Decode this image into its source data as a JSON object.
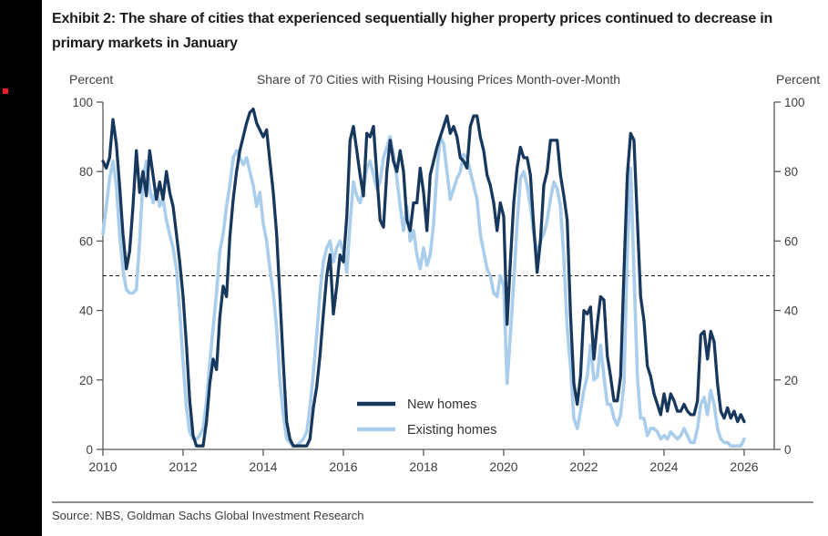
{
  "page": {
    "exhibit_title": {
      "line1": "Exhibit 2: The share of cities that experienced sequentially higher property prices continued",
      "line2": "to decrease in primary markets in January"
    },
    "source": "Source: NBS, Goldman Sachs Global Investment Research"
  },
  "chart": {
    "unit_left": "Percent",
    "unit_right": "Percent",
    "title": "Share of 70 Cities with Rising Housing Prices Month-over-Month"
  },
  "colors": {
    "new_homes": "#17375C",
    "existing_homes": "#A9CDEA",
    "axis": "#58595b",
    "reference_line": "#1a1a1a",
    "sidebar": "#000000",
    "accent_red": "#ee1c25"
  },
  "chart_data": {
    "type": "line",
    "title": "Share of 70 Cities with Rising Housing Prices Month-over-Month",
    "ylabel": "Percent",
    "ylabel_right": "Percent",
    "ylim": [
      0,
      100
    ],
    "y_ticks": [
      0,
      20,
      40,
      60,
      80,
      100
    ],
    "x_ticks": [
      2010,
      2012,
      2014,
      2016,
      2018,
      2020,
      2022,
      2024,
      2026
    ],
    "x_start_year": 2010,
    "x_frequency": "monthly",
    "x_end": "2026-01",
    "reference_line_y": 50,
    "grid": false,
    "legend_position": "inside-bottom-center",
    "series": [
      {
        "name": "New homes",
        "color": "#17375C",
        "values": [
          83,
          81,
          84,
          95,
          88,
          76,
          62,
          52,
          57,
          70,
          86,
          74,
          80,
          73,
          86,
          79,
          72,
          77,
          72,
          80,
          74,
          70,
          62,
          54,
          44,
          30,
          14,
          4,
          1,
          1,
          1,
          8,
          19,
          26,
          23,
          38,
          47,
          44,
          61,
          72,
          80,
          86,
          90,
          94,
          97,
          98,
          94,
          92,
          90,
          92,
          83,
          74,
          62,
          44,
          25,
          8,
          3,
          1,
          1,
          1,
          1,
          1,
          3,
          12,
          18,
          27,
          39,
          50,
          56,
          39,
          47,
          56,
          54,
          67,
          89,
          93,
          86,
          79,
          73,
          91,
          90,
          93,
          79,
          66,
          64,
          80,
          89,
          83,
          80,
          86,
          80,
          66,
          63,
          71,
          71,
          81,
          74,
          63,
          79,
          83,
          87,
          90,
          93,
          96,
          91,
          93,
          90,
          84,
          83,
          81,
          93,
          96,
          96,
          90,
          86,
          79,
          76,
          71,
          63,
          71,
          67,
          36,
          54,
          71,
          81,
          87,
          84,
          84,
          79,
          64,
          51,
          60,
          76,
          80,
          89,
          89,
          89,
          79,
          73,
          66,
          39,
          19,
          13,
          21,
          40,
          39,
          41,
          26,
          36,
          44,
          43,
          27,
          21,
          14,
          14,
          21,
          51,
          79,
          91,
          89,
          66,
          44,
          37,
          24,
          21,
          16,
          13,
          10,
          16,
          11,
          16,
          14,
          11,
          11,
          13,
          11,
          10,
          10,
          14,
          33,
          34,
          26,
          34,
          31,
          19,
          11,
          9,
          12,
          9,
          11,
          8,
          10,
          8
        ]
      },
      {
        "name": "Existing homes",
        "color": "#A9CDEA",
        "values": [
          62,
          70,
          78,
          83,
          76,
          62,
          52,
          46,
          45,
          45,
          46,
          60,
          78,
          83,
          75,
          71,
          75,
          70,
          72,
          66,
          62,
          58,
          52,
          40,
          25,
          12,
          5,
          3,
          3,
          4,
          6,
          14,
          25,
          35,
          45,
          57,
          62,
          70,
          76,
          84,
          86,
          84,
          82,
          84,
          80,
          76,
          70,
          74,
          65,
          60,
          52,
          45,
          35,
          20,
          10,
          3,
          2,
          1,
          1,
          2,
          3,
          5,
          12,
          22,
          33,
          45,
          54,
          58,
          60,
          54,
          58,
          60,
          57,
          51,
          65,
          77,
          73,
          71,
          75,
          81,
          83,
          79,
          75,
          77,
          84,
          87,
          90,
          85,
          78,
          70,
          63,
          70,
          60,
          63,
          56,
          52,
          58,
          53,
          56,
          65,
          80,
          90,
          88,
          80,
          72,
          75,
          78,
          80,
          85,
          84,
          80,
          76,
          72,
          62,
          57,
          52,
          50,
          45,
          44,
          50,
          47,
          19,
          33,
          48,
          65,
          78,
          80,
          76,
          70,
          62,
          56,
          60,
          62,
          66,
          72,
          77,
          75,
          70,
          55,
          35,
          24,
          9,
          6,
          11,
          17,
          21,
          30,
          20,
          21,
          30,
          21,
          13,
          13,
          9,
          7,
          10,
          19,
          57,
          81,
          51,
          21,
          9,
          9,
          4,
          6,
          6,
          5,
          3,
          4,
          3,
          5,
          4,
          3,
          4,
          6,
          4,
          2,
          2,
          6,
          13,
          15,
          10,
          17,
          13,
          6,
          3,
          2,
          2,
          1,
          1,
          1,
          1,
          3
        ]
      }
    ]
  }
}
